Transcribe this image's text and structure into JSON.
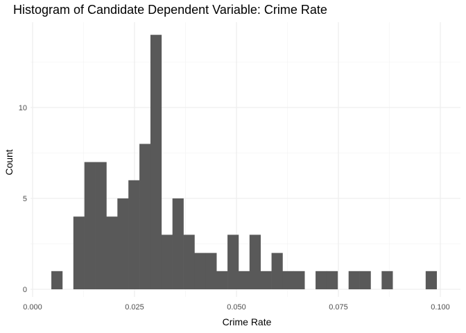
{
  "chart_data": {
    "type": "bar",
    "title": "Histogram of Candidate Dependent Variable: Crime Rate",
    "xlabel": "Crime Rate",
    "ylabel": "Count",
    "xlim": [
      0.0,
      0.1025
    ],
    "ylim": [
      0,
      14.7
    ],
    "x_ticks": [
      0.0,
      0.025,
      0.05,
      0.075,
      0.1
    ],
    "x_tick_labels": [
      "0.000",
      "0.025",
      "0.050",
      "0.075",
      "0.100"
    ],
    "y_ticks": [
      0,
      5,
      10
    ],
    "y_tick_labels": [
      "0",
      "5",
      "10"
    ],
    "grid": true,
    "bar_color": "#595959",
    "bin_width": 0.0027,
    "bins": [
      {
        "x0": 0.0046,
        "count": 1
      },
      {
        "x0": 0.0073,
        "count": 0
      },
      {
        "x0": 0.01,
        "count": 4
      },
      {
        "x0": 0.0127,
        "count": 7
      },
      {
        "x0": 0.0154,
        "count": 7
      },
      {
        "x0": 0.0181,
        "count": 4
      },
      {
        "x0": 0.0208,
        "count": 5
      },
      {
        "x0": 0.0235,
        "count": 6
      },
      {
        "x0": 0.0262,
        "count": 8
      },
      {
        "x0": 0.0289,
        "count": 14
      },
      {
        "x0": 0.0316,
        "count": 3
      },
      {
        "x0": 0.0343,
        "count": 5
      },
      {
        "x0": 0.037,
        "count": 3
      },
      {
        "x0": 0.0397,
        "count": 2
      },
      {
        "x0": 0.0424,
        "count": 2
      },
      {
        "x0": 0.0451,
        "count": 1
      },
      {
        "x0": 0.0478,
        "count": 3
      },
      {
        "x0": 0.0505,
        "count": 1
      },
      {
        "x0": 0.0532,
        "count": 3
      },
      {
        "x0": 0.0559,
        "count": 1
      },
      {
        "x0": 0.0586,
        "count": 2
      },
      {
        "x0": 0.0613,
        "count": 1
      },
      {
        "x0": 0.064,
        "count": 1
      },
      {
        "x0": 0.0667,
        "count": 0
      },
      {
        "x0": 0.0694,
        "count": 1
      },
      {
        "x0": 0.0721,
        "count": 1
      },
      {
        "x0": 0.0748,
        "count": 0
      },
      {
        "x0": 0.0775,
        "count": 1
      },
      {
        "x0": 0.0802,
        "count": 1
      },
      {
        "x0": 0.0829,
        "count": 0
      },
      {
        "x0": 0.0856,
        "count": 1
      },
      {
        "x0": 0.0883,
        "count": 0
      },
      {
        "x0": 0.091,
        "count": 0
      },
      {
        "x0": 0.0937,
        "count": 0
      },
      {
        "x0": 0.0964,
        "count": 1
      }
    ]
  }
}
